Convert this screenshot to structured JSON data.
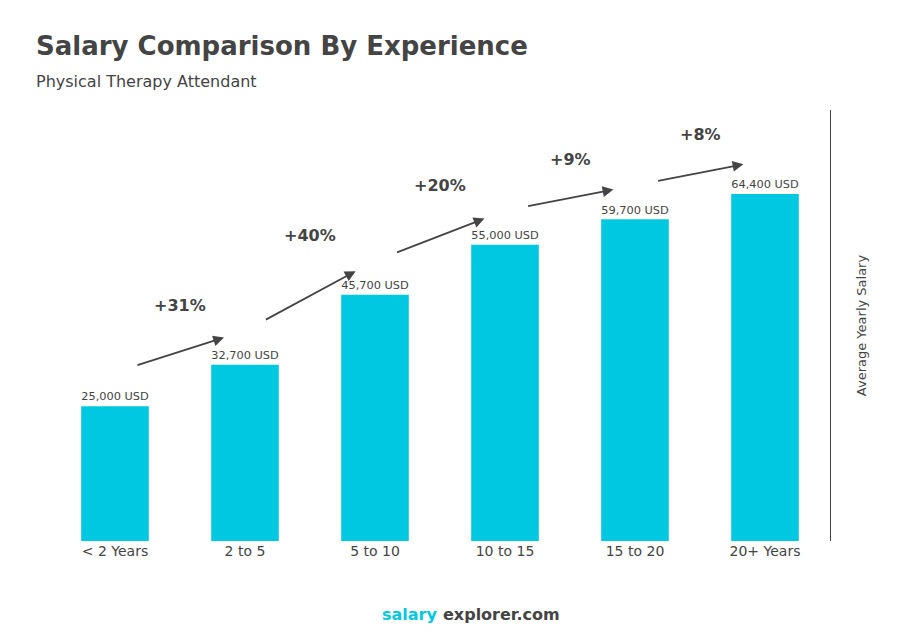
{
  "chart_data": {
    "type": "bar",
    "title": "Salary Comparison By Experience",
    "subtitle": "Physical Therapy Attendant",
    "categories": [
      "< 2 Years",
      "2 to 5",
      "5 to 10",
      "10 to 15",
      "15 to 20",
      "20+ Years"
    ],
    "values": [
      25000,
      32700,
      45700,
      55000,
      59700,
      64400
    ],
    "value_labels": [
      "25,000 USD",
      "32,700 USD",
      "45,700 USD",
      "55,000 USD",
      "59,700 USD",
      "64,400 USD"
    ],
    "data_labels": true,
    "color": "#00c8e0",
    "ylabel": "Average Yearly Salary",
    "ylim": [
      0,
      80000
    ],
    "tick_labels": "x",
    "grid": false,
    "pct_changes": [
      "+31%",
      "+40%",
      "+20%",
      "+9%",
      "+8%"
    ],
    "footer": [
      "salary",
      "explorer.com"
    ]
  }
}
